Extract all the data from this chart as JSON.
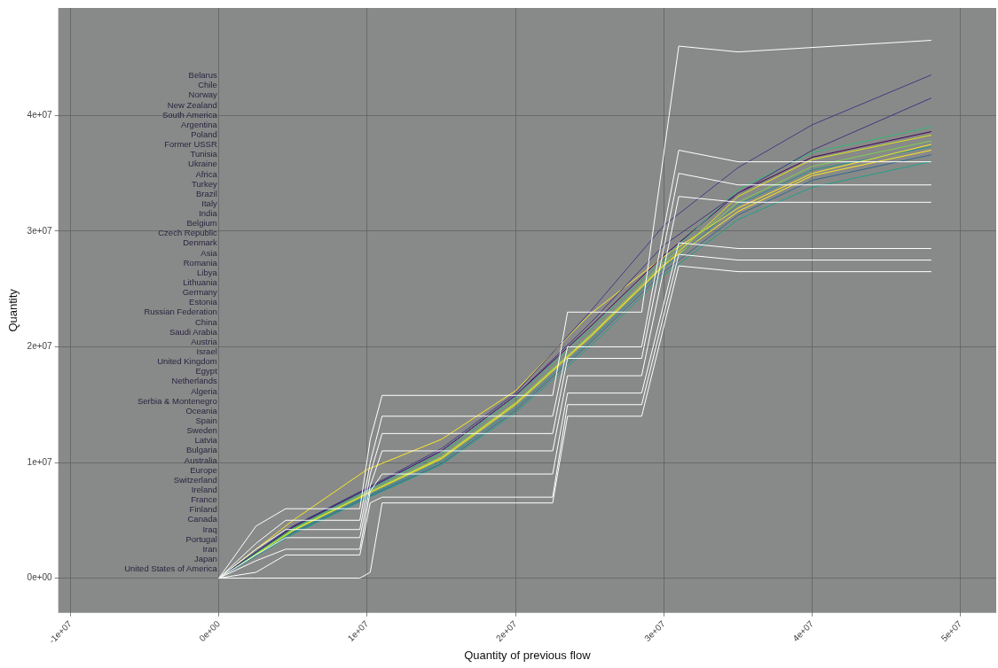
{
  "chart_data": {
    "type": "line",
    "xlabel": "Quantity of previous flow",
    "ylabel": "Quantity",
    "xlim": [
      -10830000,
      52400000
    ],
    "ylim": [
      -3000000,
      49300000
    ],
    "xticks": [
      {
        "value": -10000000,
        "label": "-1e+07"
      },
      {
        "value": 0,
        "label": "0e+00"
      },
      {
        "value": 10000000,
        "label": "1e+07"
      },
      {
        "value": 20000000,
        "label": "2e+07"
      },
      {
        "value": 30000000,
        "label": "3e+07"
      },
      {
        "value": 40000000,
        "label": "4e+07"
      },
      {
        "value": 50000000,
        "label": "5e+07"
      }
    ],
    "yticks": [
      {
        "value": 0,
        "label": "0e+00"
      },
      {
        "value": 10000000,
        "label": "1e+07"
      },
      {
        "value": 20000000,
        "label": "2e+07"
      },
      {
        "value": 30000000,
        "label": "3e+07"
      },
      {
        "value": 40000000,
        "label": "4e+07"
      }
    ],
    "grid": true,
    "marker": "none",
    "x": [
      0,
      5000000,
      10000000,
      15000000,
      20000000,
      25000000,
      30000000,
      35000000,
      40000000,
      48000000
    ],
    "annotations": [
      "Belarus",
      "Chile",
      "Norway",
      "New Zealand",
      "South America",
      "Argentina",
      "Poland",
      "Former USSR",
      "Tunisia",
      "Ukraine",
      "Africa",
      "Turkey",
      "Brazil",
      "Italy",
      "India",
      "Belgium",
      "Czech Republic",
      "Denmark",
      "Asia",
      "Romania",
      "Libya",
      "Lithuania",
      "Germany",
      "Estonia",
      "Russian Federation",
      "China",
      "Saudi Arabia",
      "Austria",
      "Israel",
      "United Kingdom",
      "Egypt",
      "Netherlands",
      "Algeria",
      "Serbia & Montenegro",
      "Oceania",
      "Spain",
      "Sweden",
      "Latvia",
      "Bulgaria",
      "Australia",
      "Europe",
      "Switzerland",
      "Ireland",
      "France",
      "Finland",
      "Canada",
      "Iraq",
      "Portugal",
      "Iran",
      "Japan",
      "United States of America"
    ],
    "series": [
      {
        "color": "#ffffff",
        "x": [
          0,
          2500000,
          4500000,
          9500000,
          10200000,
          11000000,
          22500000,
          23500000,
          28500000,
          31000000,
          35000000,
          48000000
        ],
        "values": [
          0,
          4500000,
          6000000,
          6000000,
          12000000,
          15800000,
          15800000,
          23000000,
          23000000,
          46000000,
          45500000,
          46500000
        ]
      },
      {
        "color": "#ffffff",
        "x": [
          0,
          2500000,
          4500000,
          9500000,
          10200000,
          11000000,
          22500000,
          23500000,
          28500000,
          31000000,
          35000000,
          48000000
        ],
        "values": [
          0,
          3000000,
          5000000,
          5000000,
          10000000,
          14000000,
          14000000,
          20000000,
          20000000,
          37000000,
          36000000,
          36000000
        ]
      },
      {
        "color": "#ffffff",
        "x": [
          0,
          2500000,
          4500000,
          9500000,
          10200000,
          11000000,
          22500000,
          23500000,
          28500000,
          31000000,
          35000000,
          48000000
        ],
        "values": [
          0,
          2500000,
          4200000,
          4200000,
          9000000,
          12500000,
          12500000,
          19000000,
          19000000,
          35000000,
          34000000,
          34000000
        ]
      },
      {
        "color": "#ffffff",
        "x": [
          0,
          2500000,
          4500000,
          9500000,
          10200000,
          11000000,
          22500000,
          23500000,
          28500000,
          31000000,
          35000000,
          48000000
        ],
        "values": [
          0,
          2000000,
          3500000,
          3500000,
          8000000,
          11000000,
          11000000,
          17500000,
          17500000,
          33000000,
          32500000,
          32500000
        ]
      },
      {
        "color": "#ffffff",
        "x": [
          0,
          2500000,
          4500000,
          9500000,
          10200000,
          11000000,
          22500000,
          23500000,
          28500000,
          31000000,
          35000000,
          48000000
        ],
        "values": [
          0,
          1500000,
          2500000,
          2500000,
          7500000,
          9000000,
          9000000,
          16000000,
          16000000,
          29000000,
          28500000,
          28500000
        ]
      },
      {
        "color": "#ffffff",
        "x": [
          0,
          2500000,
          4500000,
          9500000,
          10200000,
          11000000,
          22500000,
          23500000,
          28500000,
          31000000,
          35000000,
          48000000
        ],
        "values": [
          0,
          500000,
          2000000,
          2000000,
          6500000,
          7000000,
          7000000,
          15000000,
          15000000,
          28000000,
          27500000,
          27500000
        ]
      },
      {
        "color": "#ffffff",
        "x": [
          0,
          2500000,
          4500000,
          9500000,
          10200000,
          11000000,
          22500000,
          23500000,
          28500000,
          31000000,
          35000000,
          48000000
        ],
        "values": [
          0,
          0,
          0,
          0,
          500000,
          6500000,
          6500000,
          14000000,
          14000000,
          27000000,
          26500000,
          26500000
        ]
      },
      {
        "color": "#443a83",
        "values": [
          0,
          4500000,
          7800000,
          11200000,
          16000000,
          23000000,
          30500000,
          35500000,
          39200000,
          43500000
        ]
      },
      {
        "color": "#46337e",
        "values": [
          0,
          4500000,
          7700000,
          11000000,
          15800000,
          22000000,
          28800000,
          33300000,
          37000000,
          41500000
        ]
      },
      {
        "color": "#35b779",
        "values": [
          0,
          4300000,
          7600000,
          10800000,
          15600000,
          21500000,
          27600000,
          33600000,
          36800000,
          39000000
        ]
      },
      {
        "color": "#440154",
        "values": [
          0,
          4400000,
          7700000,
          11000000,
          15800000,
          21700000,
          27900000,
          33300000,
          36400000,
          38600000
        ]
      },
      {
        "color": "#dde318",
        "values": [
          0,
          4100000,
          7300000,
          10300000,
          15000000,
          20800000,
          27000000,
          33000000,
          36200000,
          38300000
        ]
      },
      {
        "color": "#7ad151",
        "values": [
          0,
          4200000,
          7400000,
          10500000,
          15200000,
          21000000,
          27300000,
          32500000,
          35600000,
          37800000
        ]
      },
      {
        "color": "#fde725",
        "values": [
          0,
          5000000,
          9400000,
          12000000,
          16200000,
          22800000,
          27800000,
          32000000,
          35000000,
          37500000
        ]
      },
      {
        "color": "#21918c",
        "values": [
          0,
          4000000,
          7100000,
          10100000,
          14700000,
          20500000,
          26800000,
          32300000,
          35300000,
          37300000
        ]
      },
      {
        "color": "#fde725",
        "values": [
          0,
          4150000,
          7300000,
          10400000,
          15100000,
          20900000,
          27100000,
          31700000,
          34800000,
          37000000
        ]
      },
      {
        "color": "#31688e",
        "values": [
          0,
          3900000,
          7000000,
          9900000,
          14500000,
          20300000,
          26500000,
          31400000,
          34400000,
          36600000
        ]
      },
      {
        "color": "#1fa187",
        "values": [
          0,
          3800000,
          6900000,
          9800000,
          14300000,
          20000000,
          26200000,
          31000000,
          33800000,
          36000000
        ]
      }
    ]
  }
}
